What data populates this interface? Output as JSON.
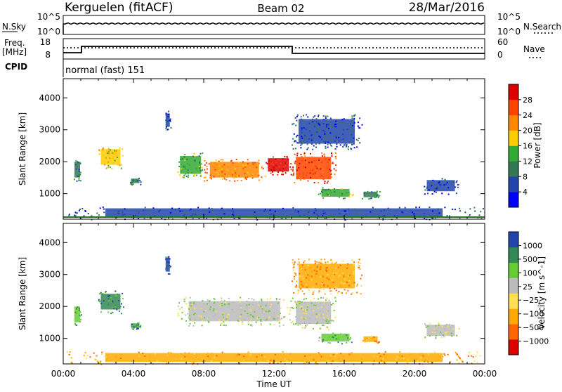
{
  "header": {
    "station": "Kerguelen (fitACF)",
    "beam": "Beam 02",
    "date": "28/Mar/2016"
  },
  "noise_panel": {
    "left_label": "N.Sky",
    "right_label": "N.Search",
    "left_ticks": [
      "10^5",
      "10^0"
    ],
    "right_ticks": [
      "10^5",
      "10^0"
    ]
  },
  "freq_panel": {
    "left_label_line1": "Freq.",
    "left_label_line2": "[MHz]",
    "right_label": "Nave",
    "left_ticks": [
      "18",
      "8"
    ],
    "right_ticks": [
      "60",
      "0"
    ]
  },
  "cpid_panel": {
    "label": "CPID",
    "value": "normal (fast) 151"
  },
  "x_axis": {
    "label": "Time UT",
    "ticks": [
      "00:00",
      "04:00",
      "08:00",
      "12:00",
      "16:00",
      "20:00",
      "00:00"
    ]
  },
  "colors": {
    "power_scale": [
      "#0000ff",
      "#2244aa",
      "#337755",
      "#33aa33",
      "#ffcc00",
      "#ff8800",
      "#ff4400",
      "#dd0000"
    ],
    "velocity_scale": [
      "#dd0000",
      "#ff6600",
      "#ffaa00",
      "#ffdd55",
      "#bbbbbb",
      "#66cc33",
      "#338855",
      "#2244aa"
    ]
  },
  "chart_data": [
    {
      "type": "heatmap",
      "name": "power-panel",
      "ylabel": "Slant Range [km]",
      "yticks": [
        1000,
        2000,
        3000,
        4000
      ],
      "ylim": [
        200,
        4600
      ],
      "xlim_hours": [
        0,
        24
      ],
      "colorbar": {
        "label": "Power [dB]",
        "ticks": [
          "28",
          "24",
          "20",
          "16",
          "12",
          "8",
          "4"
        ]
      },
      "regions": [
        {
          "t0": 0.6,
          "t1": 1.0,
          "r0": 1400,
          "r1": 2100,
          "level": 2
        },
        {
          "t0": 2.0,
          "t1": 3.4,
          "r0": 1800,
          "r1": 2500,
          "level": 4
        },
        {
          "t0": 3.8,
          "t1": 4.4,
          "r0": 1300,
          "r1": 1500,
          "level": 2
        },
        {
          "t0": 5.8,
          "t1": 6.1,
          "r0": 3000,
          "r1": 3600,
          "level": 1
        },
        {
          "t0": 6.5,
          "t1": 8.0,
          "r0": 1500,
          "r1": 2300,
          "level": 3
        },
        {
          "t0": 8.0,
          "t1": 11.5,
          "r0": 1400,
          "r1": 2100,
          "level": 5
        },
        {
          "t0": 11.5,
          "t1": 13.0,
          "r0": 1600,
          "r1": 2200,
          "level": 7
        },
        {
          "t0": 13.0,
          "t1": 15.5,
          "r0": 1300,
          "r1": 2300,
          "level": 6
        },
        {
          "t0": 13.0,
          "t1": 17.0,
          "r0": 2400,
          "r1": 3500,
          "level": 1
        },
        {
          "t0": 14.5,
          "t1": 16.5,
          "r0": 850,
          "r1": 1200,
          "level": 3
        },
        {
          "t0": 17.0,
          "t1": 18.0,
          "r0": 850,
          "r1": 1100,
          "level": 2
        },
        {
          "t0": 20.5,
          "t1": 22.5,
          "r0": 1000,
          "r1": 1500,
          "level": 1
        },
        {
          "t0": 0.0,
          "t1": 24.0,
          "r0": 200,
          "r1": 600,
          "level": 1
        }
      ]
    },
    {
      "type": "heatmap",
      "name": "velocity-panel",
      "ylabel": "Slant Range [km]",
      "yticks": [
        1000,
        2000,
        3000,
        4000
      ],
      "ylim": [
        200,
        4600
      ],
      "xlim_hours": [
        0,
        24
      ],
      "colorbar": {
        "label": "Velocity [m s^-1]",
        "ticks": [
          "1000",
          "500",
          "100",
          "25",
          "−25",
          "−100",
          "−500",
          "−1000"
        ]
      },
      "regions": [
        {
          "t0": 0.6,
          "t1": 1.0,
          "r0": 1400,
          "r1": 2100,
          "level": 5
        },
        {
          "t0": 2.0,
          "t1": 3.4,
          "r0": 1800,
          "r1": 2500,
          "level": 6
        },
        {
          "t0": 3.8,
          "t1": 4.4,
          "r0": 1300,
          "r1": 1500,
          "level": 6
        },
        {
          "t0": 5.8,
          "t1": 6.1,
          "r0": 3000,
          "r1": 3600,
          "level": 7
        },
        {
          "t0": 6.5,
          "t1": 13.0,
          "r0": 1400,
          "r1": 2300,
          "level": 4
        },
        {
          "t0": 13.0,
          "t1": 15.5,
          "r0": 1300,
          "r1": 2300,
          "level": 4
        },
        {
          "t0": 13.0,
          "t1": 17.0,
          "r0": 2400,
          "r1": 3500,
          "level": 2
        },
        {
          "t0": 14.5,
          "t1": 16.5,
          "r0": 850,
          "r1": 1200,
          "level": 5
        },
        {
          "t0": 17.0,
          "t1": 18.0,
          "r0": 850,
          "r1": 1100,
          "level": 2
        },
        {
          "t0": 20.5,
          "t1": 22.5,
          "r0": 1000,
          "r1": 1500,
          "level": 4
        },
        {
          "t0": 0.0,
          "t1": 24.0,
          "r0": 200,
          "r1": 600,
          "level": 2
        }
      ]
    }
  ]
}
